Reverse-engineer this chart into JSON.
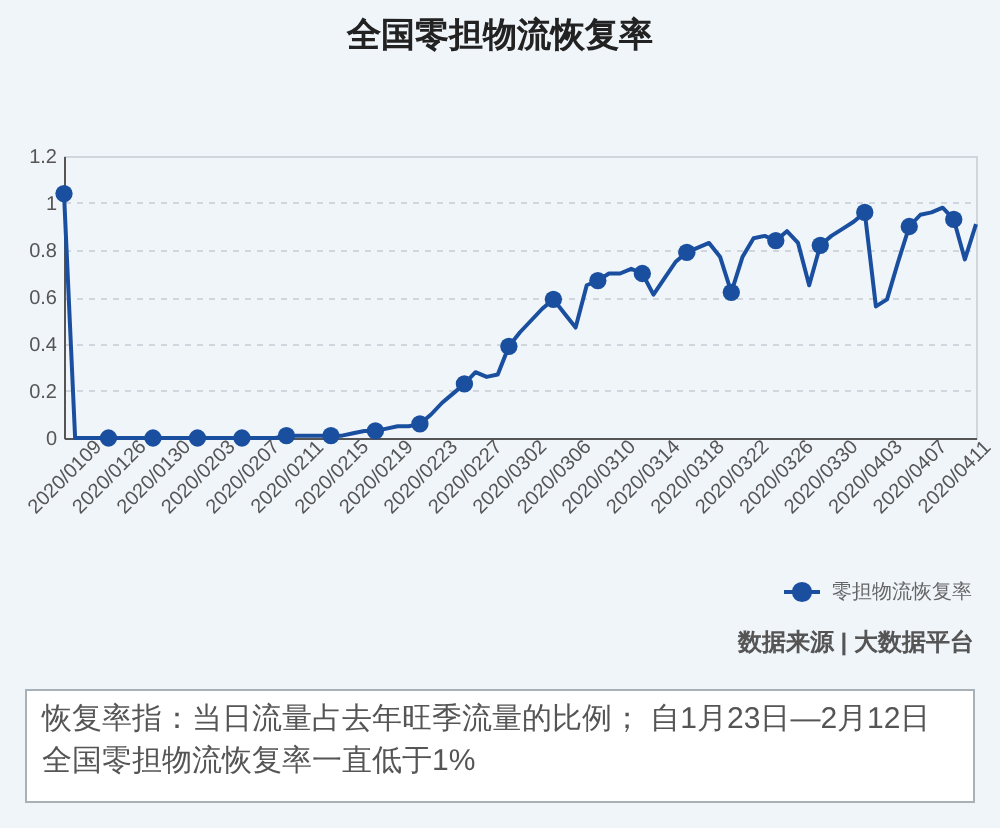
{
  "chart_data": {
    "type": "line",
    "title": "全国零担物流恢复率",
    "categories": [
      "2020/0109",
      null,
      null,
      null,
      "2020/0126",
      null,
      null,
      null,
      "2020/0130",
      null,
      null,
      null,
      "2020/0203",
      null,
      null,
      null,
      "2020/0207",
      null,
      null,
      null,
      "2020/0211",
      null,
      null,
      null,
      "2020/0215",
      null,
      null,
      null,
      "2020/0219",
      null,
      null,
      null,
      "2020/0223",
      null,
      null,
      null,
      "2020/0227",
      null,
      null,
      null,
      "2020/0302",
      null,
      null,
      null,
      "2020/0306",
      null,
      null,
      null,
      "2020/0310",
      null,
      null,
      null,
      "2020/0314",
      null,
      null,
      null,
      "2020/0318",
      null,
      null,
      null,
      "2020/0322",
      null,
      null,
      null,
      "2020/0326",
      null,
      null,
      null,
      "2020/0330",
      null,
      null,
      null,
      "2020/0403",
      null,
      null,
      null,
      "2020/0407",
      null,
      null,
      null,
      "2020/0411",
      null,
      null
    ],
    "series": [
      {
        "name": "零担物流恢复率",
        "color": "#1a4f9f",
        "values": [
          1.04,
          0,
          0,
          0,
          0,
          0,
          0,
          0,
          0,
          0,
          0,
          0,
          0,
          0,
          0,
          0,
          0,
          0,
          0,
          0,
          0.01,
          0.01,
          0.01,
          0.01,
          0.01,
          0.01,
          0.02,
          0.03,
          0.03,
          0.04,
          0.05,
          0.05,
          0.06,
          0.1,
          0.15,
          0.19,
          0.23,
          0.28,
          0.26,
          0.27,
          0.39,
          0.45,
          0.5,
          0.55,
          0.59,
          0.53,
          0.47,
          0.65,
          0.67,
          0.7,
          0.7,
          0.72,
          0.7,
          0.61,
          0.68,
          0.75,
          0.79,
          0.81,
          0.83,
          0.77,
          0.62,
          0.77,
          0.85,
          0.86,
          0.84,
          0.88,
          0.83,
          0.65,
          0.82,
          0.86,
          0.89,
          0.92,
          0.96,
          0.56,
          0.59,
          0.75,
          0.9,
          0.95,
          0.96,
          0.98,
          0.93,
          0.76,
          0.91
        ]
      },
      {
        "type": "scatter",
        "color": "#1a4f9f",
        "marker": "circle",
        "values": [
          1.04,
          null,
          null,
          null,
          0,
          null,
          null,
          null,
          0,
          null,
          null,
          null,
          0,
          null,
          null,
          null,
          0,
          null,
          null,
          null,
          0.01,
          null,
          null,
          null,
          0.01,
          null,
          null,
          null,
          0.03,
          null,
          null,
          null,
          0.06,
          null,
          null,
          null,
          0.23,
          null,
          null,
          null,
          0.39,
          null,
          null,
          null,
          0.59,
          null,
          null,
          null,
          0.67,
          null,
          null,
          null,
          0.7,
          null,
          null,
          null,
          0.79,
          null,
          null,
          null,
          0.62,
          null,
          null,
          null,
          0.84,
          null,
          null,
          null,
          0.82,
          null,
          null,
          null,
          0.96,
          null,
          null,
          null,
          0.9,
          null,
          null,
          null,
          0.93,
          null,
          null
        ]
      }
    ],
    "ylim": [
      0,
      1.2
    ],
    "yticks": [
      0,
      0.2,
      0.4,
      0.6,
      0.8,
      1,
      1.2
    ],
    "grid": "y",
    "legend": "bottom right",
    "annotations": [
      "数据来源 | 大数据平台",
      "恢复率指：当日流量占去年旺季流量的比例； 自1月23日—2月12日全国零担物流恢复率一直低于1%"
    ]
  }
}
